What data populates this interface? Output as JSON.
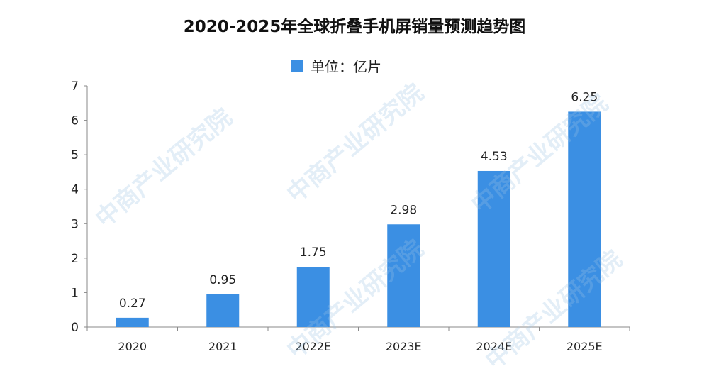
{
  "chart_data": {
    "type": "bar",
    "title": "2020-2025年全球折叠手机屏销量预测趋势图",
    "legend": {
      "label": "单位：亿片",
      "placement": "top-center"
    },
    "categories": [
      "2020",
      "2021",
      "2022E",
      "2023E",
      "2024E",
      "2025E"
    ],
    "series": [
      {
        "values": [
          0.27,
          0.95,
          1.75,
          2.98,
          4.53,
          6.25
        ]
      }
    ],
    "data_labels": [
      "0.27",
      "0.95",
      "1.75",
      "2.98",
      "4.53",
      "6.25"
    ],
    "ylim": [
      0,
      7
    ],
    "yticks": [
      "0",
      "1",
      "2",
      "3",
      "4",
      "5",
      "6",
      "7"
    ],
    "xlabel": "",
    "ylabel": "",
    "grid": false,
    "colors": {
      "bar": "#3b8fe3",
      "axis": "#8a8a8a"
    }
  },
  "watermark": "中商产业研究院"
}
